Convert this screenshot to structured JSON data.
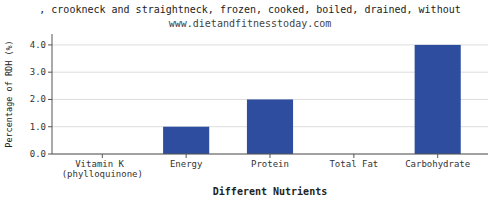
{
  "chart_data": {
    "type": "bar",
    "title": ", crookneck and straightneck, frozen, cooked, boiled, drained, without",
    "subtitle": "www.dietandfitnesstoday.com",
    "categories": [
      "Vitamin K (phylloquinone)",
      "Energy",
      "Protein",
      "Total Fat",
      "Carbohydrate"
    ],
    "values": [
      0.0,
      1.0,
      2.0,
      0.0,
      4.0
    ],
    "color": "#2e4d9e",
    "x_label": "Different Nutrients",
    "y_label": "Percentage of RDH (%)",
    "ylim": [
      0,
      4.4
    ],
    "yticks": [
      {
        "value": 0.0,
        "label": "0.0"
      },
      {
        "value": 1.0,
        "label": "1.0"
      },
      {
        "value": 2.0,
        "label": "2.0"
      },
      {
        "value": 3.0,
        "label": "3.0"
      },
      {
        "value": 4.0,
        "label": "4.0"
      }
    ],
    "grid": true
  }
}
